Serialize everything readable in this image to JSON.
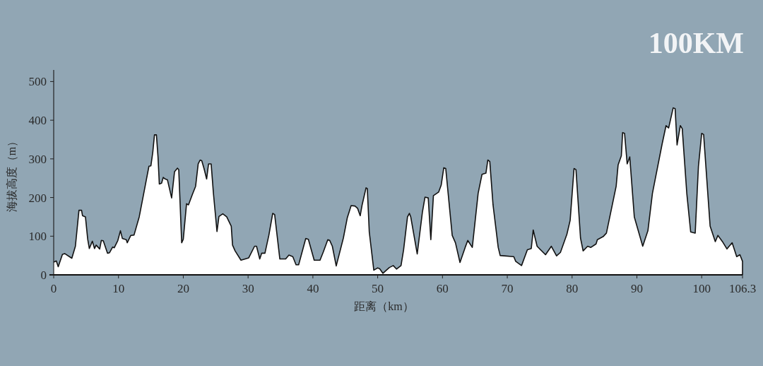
{
  "chart_data": {
    "type": "area",
    "title": "100KM",
    "xlabel": "距离（km）",
    "ylabel": "海拔高度（m）",
    "color": "#ffffff",
    "xlim": [
      0,
      106.3
    ],
    "ylim": [
      0,
      530
    ],
    "xticks": [
      0,
      10,
      20,
      30,
      40,
      50,
      60,
      70,
      80,
      90,
      100,
      106.3
    ],
    "yticks": [
      0,
      100,
      200,
      300,
      400,
      500
    ],
    "x": [
      0,
      0.4,
      0.7,
      1.35,
      1.7,
      2.8,
      3.35,
      3.9,
      4.3,
      4.45,
      4.9,
      5.25,
      5.5,
      5.97,
      6.3,
      6.55,
      7.1,
      7.35,
      7.65,
      8.3,
      8.6,
      9.1,
      9.35,
      9.9,
      10.3,
      10.6,
      11.2,
      11.35,
      11.9,
      12.4,
      13.2,
      13.9,
      14.7,
      15.0,
      15.3,
      15.55,
      15.85,
      16.1,
      16.3,
      16.65,
      16.9,
      17.2,
      17.55,
      18.2,
      18.65,
      19.1,
      19.3,
      19.75,
      20.0,
      20.5,
      20.8,
      21.4,
      21.9,
      22.3,
      22.6,
      22.85,
      23.2,
      23.6,
      23.9,
      24.3,
      24.65,
      25.2,
      25.5,
      26.1,
      26.7,
      27.4,
      27.6,
      28.0,
      28.9,
      30.1,
      31.0,
      31.3,
      31.8,
      32.1,
      32.6,
      33.2,
      33.8,
      34.1,
      34.9,
      35.8,
      36.3,
      36.9,
      37.4,
      37.8,
      38.9,
      39.3,
      40.2,
      41.1,
      41.6,
      42.3,
      42.6,
      43.0,
      43.6,
      44.7,
      45.3,
      45.9,
      46.5,
      46.9,
      47.3,
      47.6,
      48.2,
      48.4,
      48.7,
      49.4,
      50.0,
      50.3,
      50.8,
      51.8,
      52.4,
      52.9,
      53.6,
      54.0,
      54.6,
      54.9,
      55.1,
      55.6,
      56.1,
      56.9,
      57.3,
      57.8,
      58.2,
      58.6,
      59.4,
      59.8,
      60.2,
      60.5,
      61.5,
      62.0,
      62.7,
      63.5,
      63.9,
      64.6,
      65.5,
      66.1,
      66.7,
      67.0,
      67.3,
      67.8,
      68.6,
      68.9,
      71.0,
      71.3,
      72.2,
      73.1,
      73.7,
      74.0,
      74.6,
      75.9,
      76.8,
      77.6,
      78.2,
      79.2,
      79.7,
      80.3,
      80.6,
      81.3,
      81.7,
      82.4,
      82.9,
      83.7,
      83.9,
      84.8,
      85.3,
      86.8,
      87.1,
      87.6,
      87.8,
      88.1,
      88.5,
      88.9,
      89.6,
      90.9,
      91.7,
      92.4,
      93.9,
      94.5,
      94.9,
      95.6,
      95.9,
      96.2,
      96.7,
      97.0,
      97.7,
      98.3,
      99.0,
      99.5,
      100.0,
      100.3,
      101.3,
      102.1,
      102.5,
      103.2,
      103.9,
      104.7,
      105.4,
      105.9,
      106.3
    ],
    "values": [
      33,
      36,
      21,
      53,
      55,
      43,
      74,
      167,
      167,
      153,
      150,
      92,
      68,
      87,
      68,
      77,
      67,
      89,
      88,
      56,
      57,
      72,
      70,
      89,
      114,
      94,
      91,
      83,
      102,
      103,
      150,
      211,
      281,
      282,
      318,
      362,
      362,
      305,
      235,
      237,
      252,
      248,
      246,
      199,
      267,
      276,
      272,
      83,
      92,
      184,
      181,
      208,
      229,
      287,
      297,
      295,
      275,
      248,
      287,
      287,
      211,
      112,
      151,
      158,
      150,
      126,
      77,
      62,
      38,
      44,
      74,
      74,
      41,
      56,
      56,
      102,
      159,
      156,
      41,
      41,
      51,
      47,
      26,
      26,
      94,
      92,
      38,
      38,
      59,
      91,
      89,
      74,
      23,
      95,
      147,
      179,
      178,
      172,
      153,
      181,
      225,
      223,
      111,
      12,
      18,
      16,
      4,
      19,
      24,
      15,
      24,
      65,
      150,
      159,
      150,
      102,
      54,
      162,
      201,
      199,
      91,
      205,
      214,
      232,
      277,
      275,
      102,
      83,
      32,
      71,
      89,
      71,
      211,
      260,
      263,
      297,
      293,
      181,
      71,
      50,
      47,
      35,
      24,
      65,
      68,
      116,
      74,
      52,
      74,
      49,
      58,
      105,
      141,
      275,
      272,
      95,
      62,
      74,
      71,
      80,
      91,
      99,
      108,
      229,
      284,
      308,
      368,
      366,
      287,
      305,
      150,
      74,
      114,
      211,
      339,
      386,
      380,
      432,
      430,
      336,
      386,
      378,
      211,
      111,
      108,
      281,
      366,
      363,
      126,
      86,
      102,
      86,
      67,
      83,
      47,
      52,
      35
    ]
  }
}
